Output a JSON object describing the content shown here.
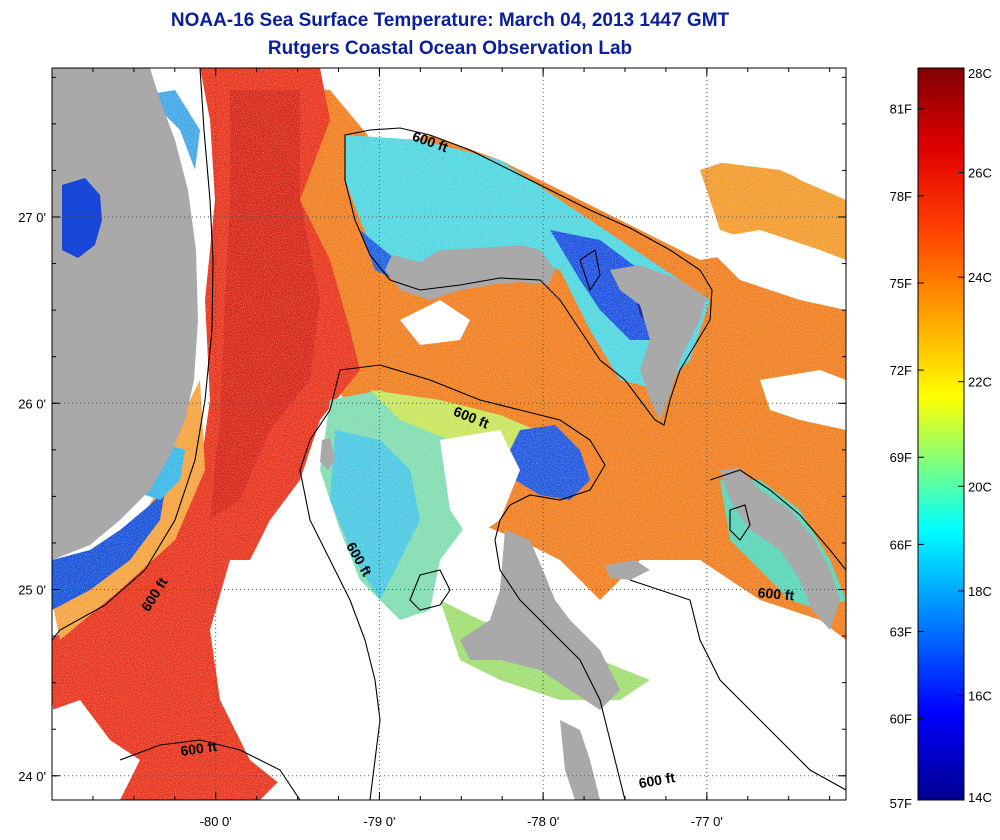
{
  "title": "NOAA-16 Sea Surface Temperature:  March 04, 2013 1447 GMT",
  "subtitle": "Rutgers Coastal Ocean Observation Lab",
  "colors": {
    "land": "#a9a9a9",
    "no_data": "#ffffff",
    "gulf_stream": "#e8321a",
    "open_ocean": "#f07d1d",
    "bank_cool": "#49d2dc",
    "bank_cold": "#1746d8",
    "bank_mid": "#9ee05a",
    "title_color": "#0b1f9a"
  },
  "axes": {
    "x_ticks": [
      {
        "lon": -80,
        "label": "-80 0'"
      },
      {
        "lon": -79,
        "label": "-79 0'"
      },
      {
        "lon": -78,
        "label": "-78 0'"
      },
      {
        "lon": -77,
        "label": "-77 0'"
      }
    ],
    "y_ticks": [
      {
        "lat": 27,
        "label": "27 0'"
      },
      {
        "lat": 26,
        "label": "26 0'"
      },
      {
        "lat": 25,
        "label": "25 0'"
      },
      {
        "lat": 24,
        "label": "24 0'"
      }
    ],
    "lon_range": [
      -81.0,
      -76.15
    ],
    "lat_range": [
      23.87,
      27.8
    ],
    "grid": "dotted"
  },
  "depth_labels": [
    {
      "text": "600 ft",
      "lon": -78.7,
      "lat": 27.38
    },
    {
      "text": "600 ft",
      "lon": -78.45,
      "lat": 25.9
    },
    {
      "text": "600 ft",
      "lon": -79.15,
      "lat": 25.15
    },
    {
      "text": "600 ft",
      "lon": -80.35,
      "lat": 24.96
    },
    {
      "text": "600 ft",
      "lon": -76.58,
      "lat": 24.95
    },
    {
      "text": "600 ft",
      "lon": -80.1,
      "lat": 24.12
    },
    {
      "text": "600 ft",
      "lon": -77.3,
      "lat": 23.95
    }
  ],
  "colorbar": {
    "c_labels": [
      {
        "value": 28,
        "label": "28C"
      },
      {
        "value": 26,
        "label": "26C"
      },
      {
        "value": 24,
        "label": "24C"
      },
      {
        "value": 22,
        "label": "22C"
      },
      {
        "value": 20,
        "label": "20C"
      },
      {
        "value": 18,
        "label": "18C"
      },
      {
        "value": 16,
        "label": "16C"
      },
      {
        "value": 14,
        "label": "14C"
      }
    ],
    "f_labels": [
      {
        "value": 81,
        "label": "81F"
      },
      {
        "value": 78,
        "label": "78F"
      },
      {
        "value": 75,
        "label": "75F"
      },
      {
        "value": 72,
        "label": "72F"
      },
      {
        "value": 69,
        "label": "69F"
      },
      {
        "value": 66,
        "label": "66F"
      },
      {
        "value": 63,
        "label": "63F"
      },
      {
        "value": 60,
        "label": "60F"
      },
      {
        "value": 57,
        "label": "57F"
      }
    ],
    "range_c": [
      14,
      28
    ]
  }
}
